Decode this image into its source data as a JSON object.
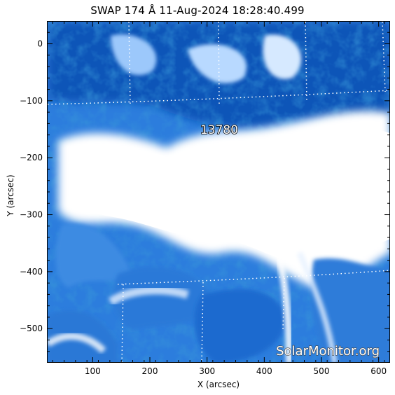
{
  "title": "SWAP 174 Å 11-Aug-2024 18:28:40.499",
  "axes": {
    "xlabel": "X (arcsec)",
    "ylabel": "Y (arcsec)",
    "xlim": [
      20,
      620
    ],
    "ylim": [
      -560,
      40
    ],
    "xticks": [
      100,
      200,
      300,
      400,
      500,
      600
    ],
    "yticks": [
      0,
      -100,
      -200,
      -300,
      -400,
      -500
    ]
  },
  "region": {
    "number": "13780"
  },
  "watermark": "SolarMonitor.org",
  "colors": {
    "dark_blue": "#0a4fb0",
    "mid_blue": "#2f7fe0",
    "light_blue": "#a8d0ff",
    "bright": "#ffffff"
  }
}
